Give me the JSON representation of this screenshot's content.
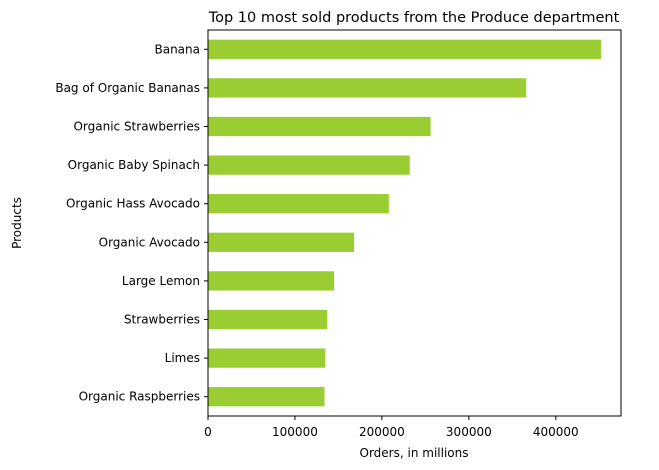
{
  "chart_data": {
    "type": "bar",
    "orientation": "horizontal",
    "title": "Top 10 most sold products from the Produce department",
    "xlabel": "Orders, in millions",
    "ylabel": "Products",
    "categories": [
      "Banana",
      "Bag of Organic Bananas",
      "Organic Strawberries",
      "Organic Baby Spinach",
      "Organic Hass Avocado",
      "Organic Avocado",
      "Large Lemon",
      "Strawberries",
      "Limes",
      "Organic Raspberries"
    ],
    "values": [
      452000,
      366000,
      256000,
      232000,
      208000,
      168000,
      145000,
      137000,
      135000,
      134000
    ],
    "xlim": [
      0,
      475000
    ],
    "xticks": [
      0,
      100000,
      200000,
      300000,
      400000
    ],
    "xtick_labels": [
      "0",
      "100000",
      "200000",
      "300000",
      "400000"
    ],
    "bar_color": "#9acd32",
    "grid": false,
    "legend": "none"
  }
}
